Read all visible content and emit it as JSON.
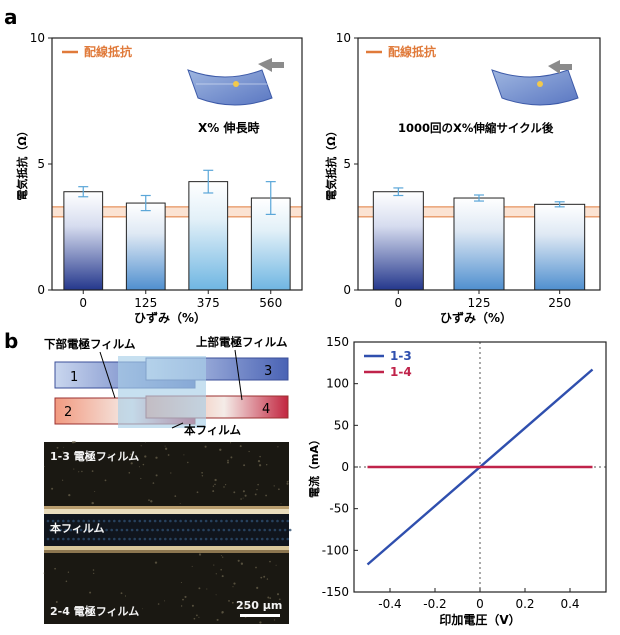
{
  "panel_labels": {
    "a": "a",
    "b": "b"
  },
  "colors": {
    "wire": "#e07a3a",
    "bar_fill_top": "#ffffff",
    "bar_fill_bottom": "#2b3b8f",
    "error_bar": "#5aa6d8",
    "series_13": "#2f4fae",
    "series_14": "#c0234a",
    "film_blue": "#7b9ad0",
    "film_red": "#d95a4a"
  },
  "chart_data": [
    {
      "type": "bar",
      "categories": [
        "0",
        "125",
        "375",
        "560"
      ],
      "values": [
        3.9,
        3.45,
        4.3,
        3.65
      ],
      "errors": [
        0.2,
        0.3,
        0.45,
        0.65
      ],
      "ylabel": "電気抵抗（Ω）",
      "xlabel": "ひずみ（%）",
      "yticks": [
        0,
        5,
        10
      ],
      "ylim": [
        0,
        10
      ],
      "wire_resistance_band": [
        2.9,
        3.3
      ],
      "legend": "配線抵抗",
      "annotation": "X% 伸長時"
    },
    {
      "type": "bar",
      "categories": [
        "0",
        "125",
        "250"
      ],
      "values": [
        3.9,
        3.65,
        3.4
      ],
      "errors": [
        0.15,
        0.12,
        0.1
      ],
      "ylabel": "電気抵抗（Ω）",
      "xlabel": "ひずみ（%）",
      "yticks": [
        0,
        5,
        10
      ],
      "ylim": [
        0,
        10
      ],
      "wire_resistance_band": [
        2.9,
        3.3
      ],
      "legend": "配線抵抗",
      "annotation": "1000回のX%伸縮サイクル後"
    },
    {
      "type": "line",
      "xlabel": "印加電圧（V）",
      "ylabel": "電流（mA）",
      "xlim": [
        -0.5,
        0.5
      ],
      "ylim": [
        -150,
        150
      ],
      "xticks": [
        -0.4,
        -0.2,
        0,
        0.2,
        0.4
      ],
      "xtick_labels": [
        "-0.4",
        "-0.2",
        "0",
        "0.2",
        "0.4"
      ],
      "yticks": [
        -150,
        -100,
        -50,
        0,
        50,
        100,
        150
      ],
      "series": [
        {
          "name": "1-3",
          "x": [
            -0.5,
            0.5
          ],
          "y": [
            -117,
            117
          ]
        },
        {
          "name": "1-4",
          "x": [
            -0.5,
            0.5
          ],
          "y": [
            0,
            0
          ]
        }
      ]
    }
  ],
  "diagram": {
    "lower_film_label": "下部電極フィルム",
    "upper_film_label": "上部電極フィルム",
    "main_film_label": "本フィルム",
    "electrodes": [
      "1",
      "2",
      "3",
      "4"
    ]
  },
  "micrograph": {
    "top_label": "1-3 電極フィルム",
    "middle_label": "本フィルム",
    "bottom_label": "2-4 電極フィルム",
    "scale_label": "250 μm"
  }
}
